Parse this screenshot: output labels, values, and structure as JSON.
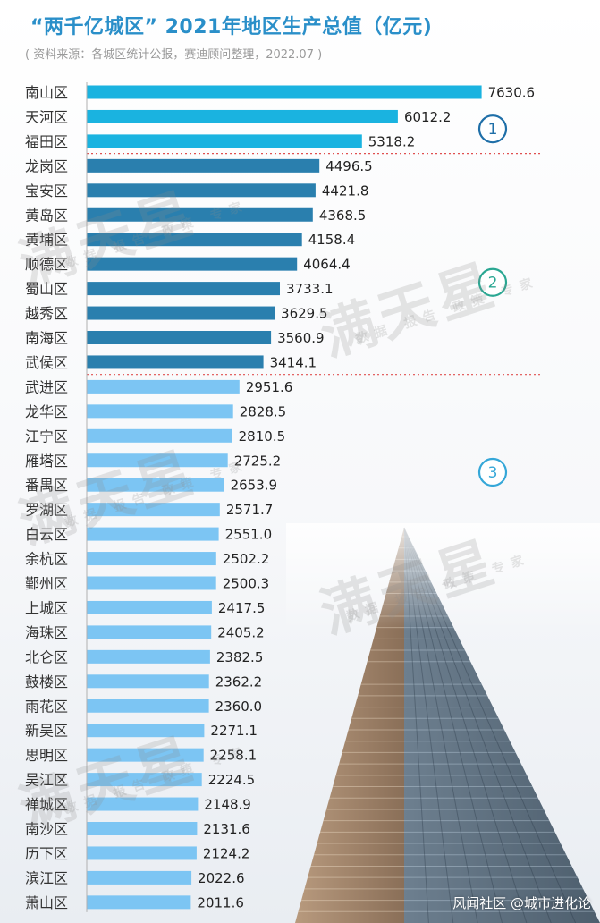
{
  "header": {
    "title": "“两千亿城区” 2021年地区生产总值（亿元)",
    "subtitle": "( 资料来源：各城区统计公报，赛迪顾问整理，2022.07 )"
  },
  "watermark": {
    "brand": "满天星",
    "tagline": "数据 报告 政策 专家"
  },
  "footer": {
    "credit": "风闻社区 @城市进化论"
  },
  "colors": {
    "tier1": "#1ab3e0",
    "tier2": "#2a7fae",
    "tier3": "#7cc5f3",
    "title": "#2a8fc9",
    "divider": "#e05050"
  },
  "chart_data": {
    "type": "bar",
    "orientation": "horizontal",
    "title": "“两千亿城区” 2021年地区生产总值（亿元)",
    "categories": [
      "南山区",
      "天河区",
      "福田区",
      "龙岗区",
      "宝安区",
      "黄岛区",
      "黄埔区",
      "顺德区",
      "蜀山区",
      "越秀区",
      "南海区",
      "武侯区",
      "武进区",
      "龙华区",
      "江宁区",
      "雁塔区",
      "番禺区",
      "罗湖区",
      "白云区",
      "余杭区",
      "鄞州区",
      "上城区",
      "海珠区",
      "北仑区",
      "鼓楼区",
      "雨花区",
      "新吴区",
      "思明区",
      "吴江区",
      "禅城区",
      "南沙区",
      "历下区",
      "滨江区",
      "萧山区"
    ],
    "values": [
      7630.6,
      6012.2,
      5318.2,
      4496.5,
      4421.8,
      4368.5,
      4158.4,
      4064.4,
      3733.1,
      3629.5,
      3560.9,
      3414.1,
      2951.6,
      2828.5,
      2810.5,
      2725.2,
      2653.9,
      2571.7,
      2551.0,
      2502.2,
      2500.3,
      2417.5,
      2405.2,
      2382.5,
      2362.2,
      2360.0,
      2271.1,
      2258.1,
      2224.5,
      2148.9,
      2131.6,
      2124.2,
      2022.6,
      2011.6
    ],
    "value_labels": [
      "7630.6",
      "6012.2",
      "5318.2",
      "4496.5",
      "4421.8",
      "4368.5",
      "4158.4",
      "4064.4",
      "3733.1",
      "3629.5",
      "3560.9",
      "3414.1",
      "2951.6",
      "2828.5",
      "2810.5",
      "2725.2",
      "2653.9",
      "2571.7",
      "2551.0",
      "2502.2",
      "2500.3",
      "2417.5",
      "2405.2",
      "2382.5",
      "2362.2",
      "2360.0",
      "2271.1",
      "2258.1",
      "2224.5",
      "2148.9",
      "2131.6",
      "2124.2",
      "2022.6",
      "2011.6"
    ],
    "groups": [
      {
        "label": "1",
        "first": 0,
        "last": 2
      },
      {
        "label": "2",
        "first": 3,
        "last": 11
      },
      {
        "label": "3",
        "first": 12,
        "last": 33
      }
    ],
    "xlim": [
      0,
      7630.6
    ]
  }
}
